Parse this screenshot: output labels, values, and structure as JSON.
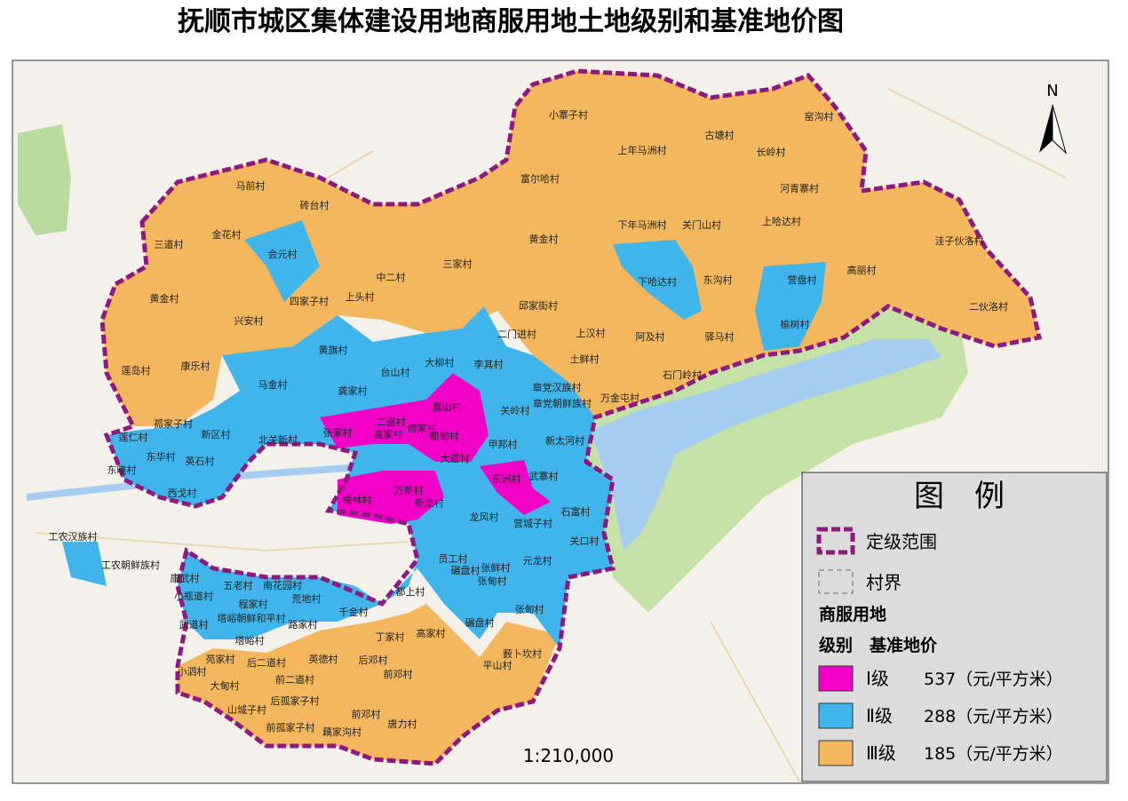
{
  "title": "抚顺市城区集体建设用地商服用地土地级别和基准地价图",
  "compass": "N",
  "scale": "1:210,000",
  "villages": [
    "小寨子村",
    "古塘村",
    "窑沟村",
    "上年马洲村",
    "长岭村",
    "富尔哈村",
    "河青寨村",
    "马前村",
    "砖台村",
    "下年马洲村",
    "关门山村",
    "上哈达村",
    "洼子伙洛村",
    "金花村",
    "黄金村",
    "三道村",
    "会元村",
    "三家村",
    "高丽村",
    "中二村",
    "下哈达村",
    "东沟村",
    "营盘村",
    "黄金村",
    "四家子村",
    "上头村",
    "邱家街村",
    "二伙洛村",
    "兴安村",
    "榆树村",
    "上汉村",
    "阿及村",
    "驿马村",
    "二门进村",
    "黄旗村",
    "莲岛村",
    "康乐村",
    "大柳村",
    "李其村",
    "土鲜村",
    "台山村",
    "石门岭村",
    "马金村",
    "龚家村",
    "章党汉族村",
    "章党朝鲜族村",
    "万金屯村",
    "嘉山村",
    "关岭村",
    "孤家子村",
    "二道村",
    "傅家村",
    "高家村",
    "张家村",
    "新区村",
    "北关新村",
    "都甸村",
    "甲邦村",
    "新太河村",
    "大道村",
    "东华村",
    "英石村",
    "莲仁村",
    "东晓村",
    "西戈村",
    "东洲村",
    "武寨村",
    "万新村",
    "新龙村",
    "榆林村",
    "石富村",
    "龙风村",
    "营城子村",
    "关口村",
    "工农汉族村",
    "工农朝鲜族村",
    "员工村",
    "元龙村",
    "碾盘村",
    "张鲜村",
    "张甸村",
    "康武村",
    "五老村",
    "南花园村",
    "小瓶道村",
    "程家村",
    "荒地村",
    "都上村",
    "塔峪朝鲜和平村",
    "千金村",
    "张甸村",
    "武道村",
    "路家村",
    "碾盘村",
    "高家村",
    "丁家村",
    "塔峪村",
    "苑家村",
    "后二道村",
    "英德村",
    "后邓村",
    "薮卜坎村",
    "平山村",
    "小泗村",
    "前二道村",
    "前邓村",
    "大甸村",
    "后孤家子村",
    "山城子村",
    "前邓村",
    "前孤家子村",
    "藕家沟村",
    "唐力村"
  ],
  "legend": {
    "title": "图　例",
    "boundary": "定级范围",
    "village_border": "村界",
    "subtitle": "商服用地",
    "header": "级别　基准地价",
    "items": [
      {
        "grade": "Ⅰ级",
        "price": "537（元/平方米）",
        "color": "#f200c8"
      },
      {
        "grade": "Ⅱ级",
        "price": "288（元/平方米）",
        "color": "#3fb5ec"
      },
      {
        "grade": "Ⅲ级",
        "price": "185（元/平方米）",
        "color": "#f5b75e"
      }
    ]
  }
}
